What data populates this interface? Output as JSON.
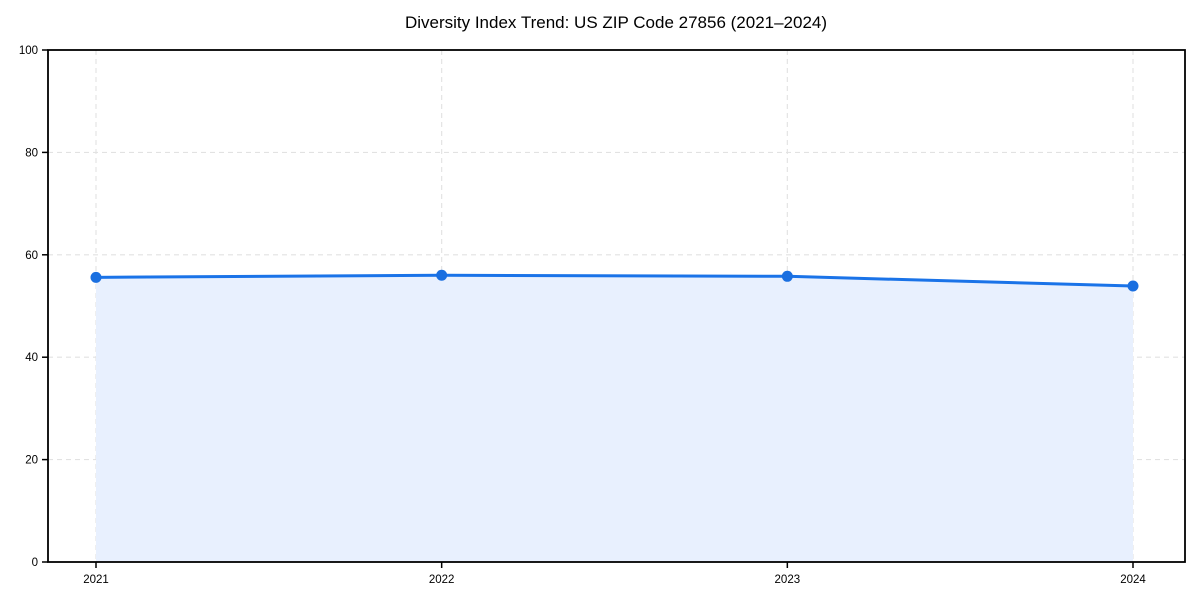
{
  "chart_data": {
    "type": "line",
    "title": "Diversity Index Trend: US ZIP Code 27856 (2021–2024)",
    "x": [
      2021,
      2022,
      2023,
      2024
    ],
    "series": [
      {
        "name": "Diversity Index",
        "values": [
          55.6,
          56.0,
          55.8,
          53.9
        ]
      }
    ],
    "xlabel": "",
    "ylabel": "",
    "ylim": [
      0,
      100
    ],
    "yticks": [
      0,
      20,
      40,
      60,
      80,
      100
    ],
    "xtick_labels": [
      "2021",
      "2022",
      "2023",
      "2024"
    ],
    "grid": "dashed-both-axes",
    "legend": "none",
    "area_fill": true,
    "marker": "circle",
    "colors": {
      "line": "#1a73e8",
      "marker": "#1a6fe0",
      "area_fill": "#e8f0fe",
      "grid": "#e2e2e2",
      "spine": "#000000",
      "tick_text": "#000000",
      "title_text": "#000000",
      "background": "#ffffff"
    }
  }
}
